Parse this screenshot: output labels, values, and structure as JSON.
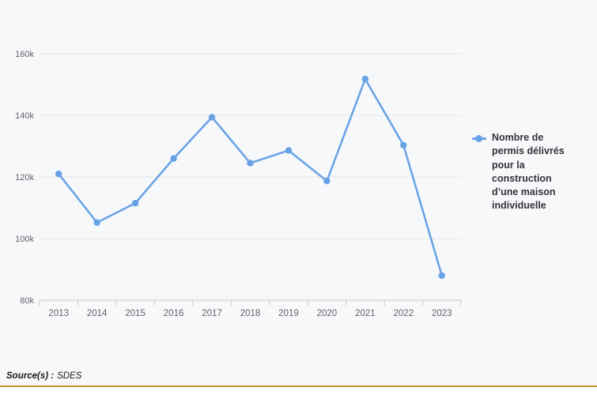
{
  "chart_data": {
    "type": "line",
    "title": "",
    "xlabel": "",
    "ylabel": "",
    "x": [
      "2013",
      "2014",
      "2015",
      "2016",
      "2017",
      "2018",
      "2019",
      "2020",
      "2021",
      "2022",
      "2023"
    ],
    "series": [
      {
        "name": "Nombre de permis délivrés pour la construction d’une maison individuelle",
        "values": [
          121000,
          105200,
          111500,
          126000,
          139400,
          124500,
          128600,
          118700,
          151800,
          130300,
          88000
        ],
        "color": "#67a2e5"
      }
    ],
    "ylim": [
      80000,
      160000
    ],
    "yticks": [
      {
        "value": 80000,
        "label": "80k"
      },
      {
        "value": 100000,
        "label": "100k"
      },
      {
        "value": 120000,
        "label": "120k"
      },
      {
        "value": 140000,
        "label": "140k"
      },
      {
        "value": 160000,
        "label": "160k"
      }
    ],
    "grid": true,
    "legend_position": "right"
  },
  "legend": {
    "label": "Nombre de permis délivrés pour la construction d’une maison individuelle",
    "marker_color": "#67a2e5"
  },
  "source": {
    "prefix": "Source(s) :",
    "value": "SDES"
  },
  "colors": {
    "background": "#f7f8fa",
    "line": "#67a2e5",
    "grid": "#e6e6e6",
    "axis": "#c9c9c9",
    "tick_label": "#62656b",
    "legend_text": "#303338",
    "accent_bar": "#bb9530",
    "footer": "#ffffff"
  }
}
